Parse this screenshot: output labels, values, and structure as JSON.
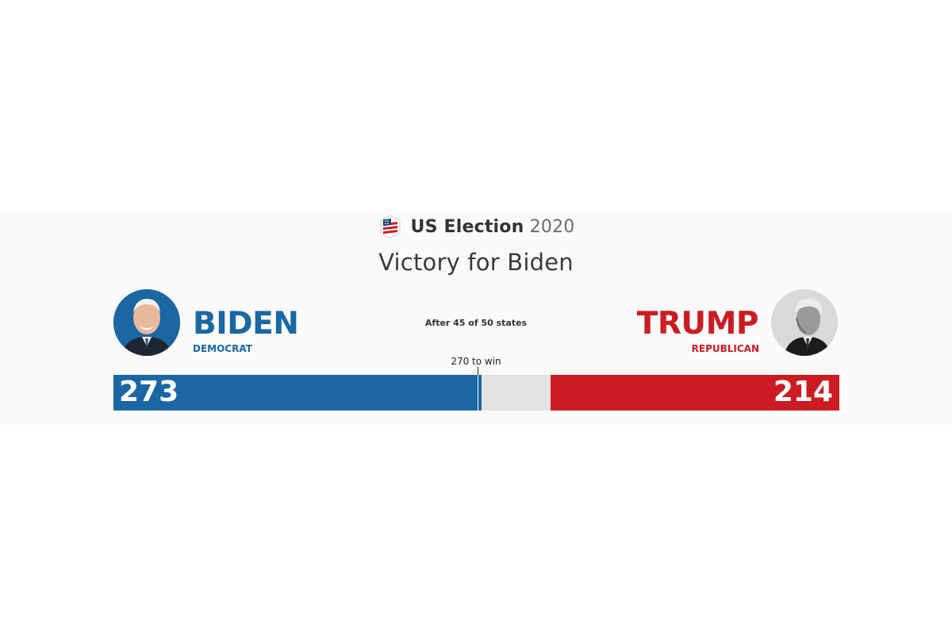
{
  "header": {
    "brand": "US Election",
    "year": "2020",
    "logo_icon": "us-flag-badge-icon"
  },
  "headline": "Victory for Biden",
  "progress_text": "After 45 of 50 states",
  "threshold": {
    "label": "270 to win",
    "value": 270
  },
  "total_electoral_votes": 538,
  "candidates": {
    "democrat": {
      "name": "BIDEN",
      "party": "DEMOCRAT",
      "votes": "273",
      "votes_value": 273,
      "color": "#1a67a3"
    },
    "republican": {
      "name": "TRUMP",
      "party": "REPUBLICAN",
      "votes": "214",
      "votes_value": 214,
      "color": "#cc1c23"
    }
  },
  "colors": {
    "undecided": "#e3e3e3",
    "text": "#3a3a3a"
  }
}
